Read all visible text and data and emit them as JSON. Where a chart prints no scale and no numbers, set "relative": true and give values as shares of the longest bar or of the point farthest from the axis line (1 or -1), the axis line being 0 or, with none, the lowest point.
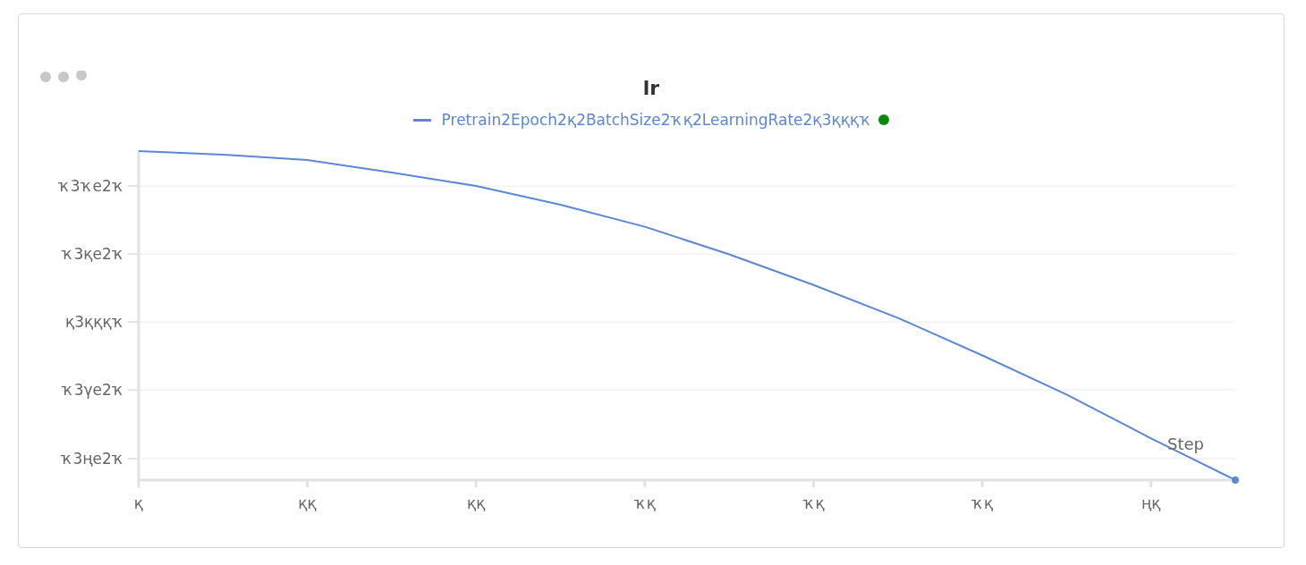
{
  "chart_data": {
    "type": "line",
    "title": "lr",
    "xlabel": "Step",
    "relative": true,
    "categories": [
      "қ",
      null,
      "ққ",
      null,
      "ққ",
      null,
      "ҡқ",
      null,
      "ҡқ",
      null,
      "ҡқ",
      null,
      "ңқ",
      null
    ],
    "series": [
      {
        "name": "Pretrain2Epoch2қ2BatchSize2ҡқ2LearningRate2қ3қққҡ",
        "color": "#5b87d6",
        "values": [
          1,
          0.989,
          0.973,
          0.935,
          0.894,
          0.837,
          0.77,
          0.686,
          0.593,
          0.493,
          0.379,
          0.26,
          0.127,
          0
        ]
      }
    ],
    "annotations": [
      "ҡ3ҡe2ҡ",
      "ҡ3қe2ҡ",
      "қ3қққҡ",
      "ҡ3γe2ҡ",
      "ҡ3ңe2ҡ"
    ],
    "grid": "y",
    "legend": "top"
  }
}
